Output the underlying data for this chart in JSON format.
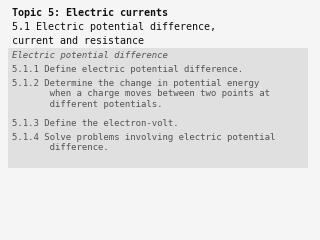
{
  "background_color": "#f5f5f5",
  "box_color": "#e0e0e0",
  "title_bold": "Topic 5: Electric currents",
  "title_line2": "5.1 Electric potential difference,",
  "title_line3": "current and resistance",
  "section_italic": "Electric potential difference",
  "items": [
    "5.1.1 Define electric potential difference.",
    "5.1.2 Determine the change in potential energy\n       when a charge moves between two points at\n       different potentials.",
    "5.1.3 Define the electron-volt.",
    "5.1.4 Solve problems involving electric potential\n       difference."
  ],
  "font_family": "monospace",
  "title_fontsize": 7.2,
  "body_fontsize": 6.5,
  "text_color": "#555555",
  "title_color": "#111111"
}
